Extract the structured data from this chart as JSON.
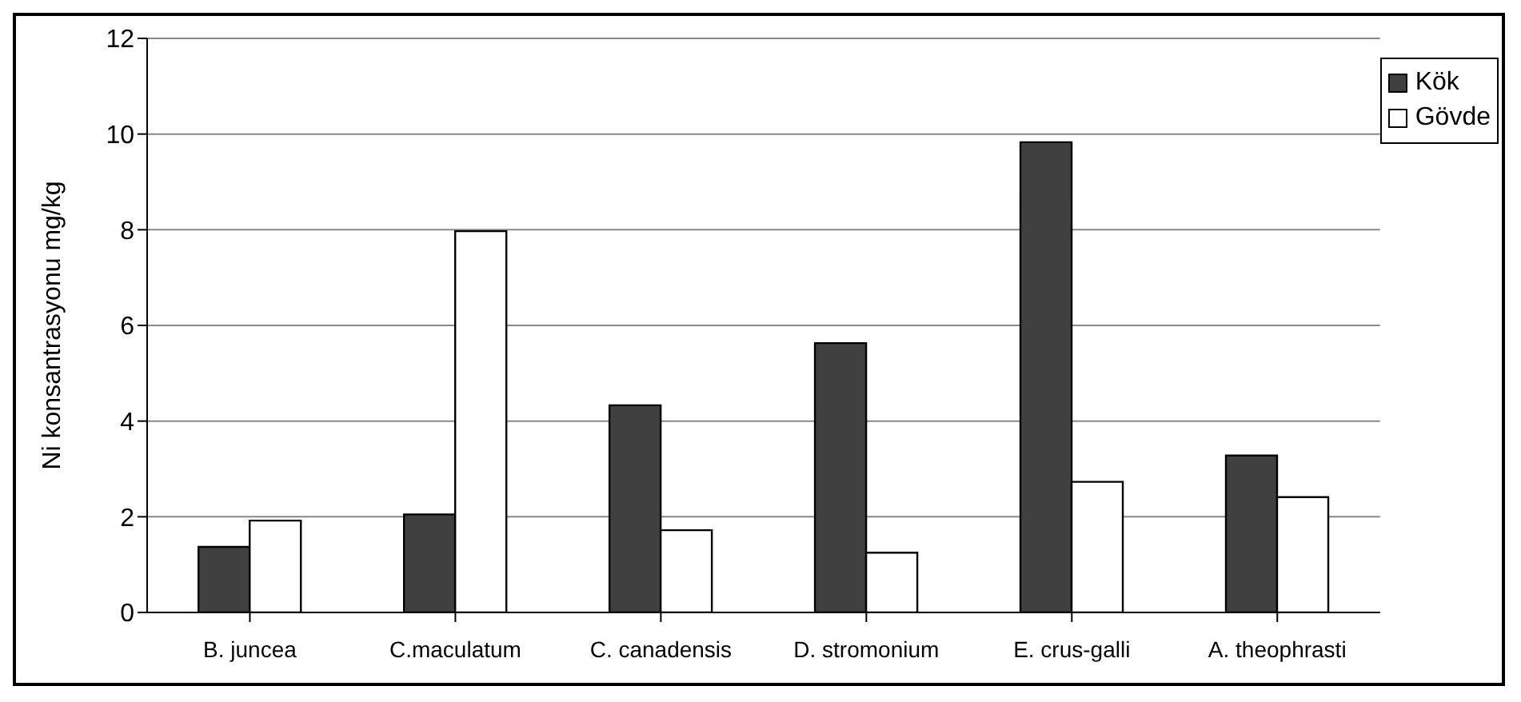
{
  "chart_data": {
    "type": "bar",
    "ylabel": "Ni konsantrasyonu mg/kg",
    "categories": [
      "B. juncea",
      "C.maculatum",
      "C. canadensis",
      "D. stromonium",
      "E. crus-galli",
      "A. theophrasti"
    ],
    "series": [
      {
        "name": "Kök",
        "color": "#404040",
        "values": [
          1.37,
          2.05,
          4.33,
          5.63,
          9.83,
          3.28
        ]
      },
      {
        "name": "Gövde",
        "color": "#ffffff",
        "values": [
          1.92,
          7.97,
          1.72,
          1.25,
          2.73,
          2.41
        ]
      }
    ],
    "ylim": [
      0,
      12
    ],
    "yticks": [
      0,
      2,
      4,
      6,
      8,
      10,
      12
    ],
    "grid": "y",
    "legend": "top right"
  }
}
